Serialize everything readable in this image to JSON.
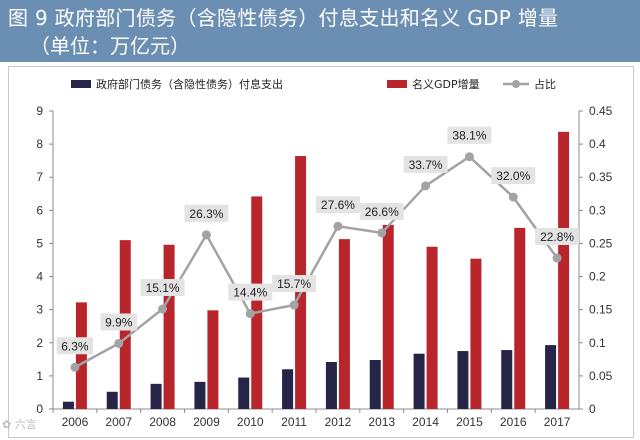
{
  "title": {
    "line1": "图 9  政府部门债务（含隐性债务）付息支出和名义 GDP 增量",
    "line2": "（单位：万亿元）"
  },
  "colors": {
    "title_bg": "#6a8fb3",
    "interest_bar": "#262447",
    "gdp_bar": "#b8262c",
    "ratio_line": "#a3a3a3",
    "label_bg": "#e3e3e3"
  },
  "watermark": "✿ 六言",
  "chart_data": {
    "type": "bar",
    "categories": [
      "2006",
      "2007",
      "2008",
      "2009",
      "2010",
      "2011",
      "2012",
      "2013",
      "2014",
      "2015",
      "2016",
      "2017"
    ],
    "series": [
      {
        "name": "政府部门债务（含隐性债务）付息支出",
        "type": "bar",
        "axis": "left",
        "values": [
          0.22,
          0.52,
          0.76,
          0.82,
          0.95,
          1.2,
          1.42,
          1.48,
          1.67,
          1.75,
          1.78,
          1.93
        ]
      },
      {
        "name": "名义GDP增量",
        "type": "bar",
        "axis": "left",
        "values": [
          3.22,
          5.1,
          4.96,
          2.98,
          6.42,
          7.64,
          5.13,
          5.56,
          4.9,
          4.54,
          5.47,
          8.37
        ]
      },
      {
        "name": "占比",
        "type": "line",
        "axis": "right",
        "values": [
          0.063,
          0.099,
          0.151,
          0.263,
          0.144,
          0.157,
          0.276,
          0.266,
          0.337,
          0.381,
          0.32,
          0.228
        ],
        "labels": [
          "6.3%",
          "9.9%",
          "15.1%",
          "26.3%",
          "14.4%",
          "15.7%",
          "27.6%",
          "26.6%",
          "33.7%",
          "38.1%",
          "32.0%",
          "22.8%"
        ]
      }
    ],
    "y_left": {
      "range": [
        0,
        9
      ],
      "ticks": [
        "0",
        "1",
        "2",
        "3",
        "4",
        "5",
        "6",
        "7",
        "8",
        "9"
      ]
    },
    "y_right": {
      "range": [
        0,
        0.45
      ],
      "ticks": [
        "0",
        "0.05",
        "0.1",
        "0.15",
        "0.2",
        "0.25",
        "0.3",
        "0.35",
        "0.4",
        "0.45"
      ]
    },
    "legend": [
      "政府部门债务（含隐性债务）付息支出",
      "名义GDP增量",
      "占比"
    ],
    "legend_position": "top",
    "grid": false
  }
}
